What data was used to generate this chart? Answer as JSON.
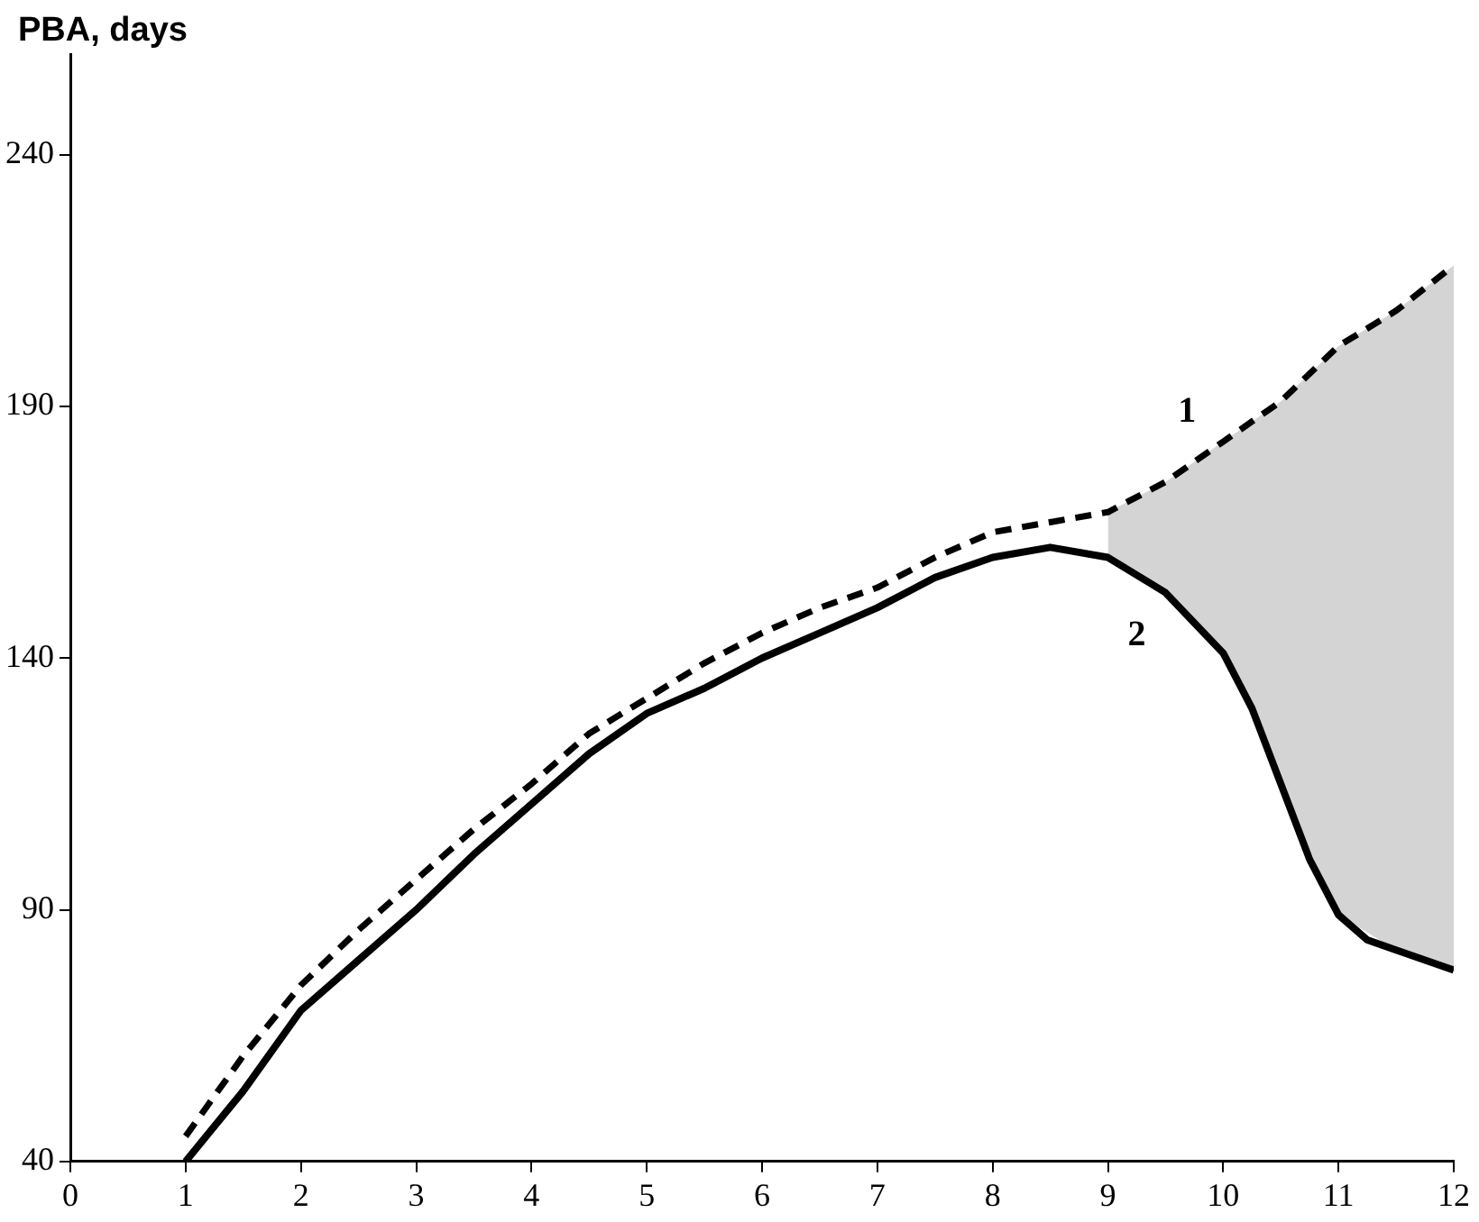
{
  "chart_data": {
    "type": "line",
    "ylabel": "PBA, days",
    "xlim": [
      0,
      12
    ],
    "xticks": [
      0,
      1,
      2,
      3,
      4,
      5,
      6,
      7,
      8,
      9,
      10,
      11,
      12
    ],
    "ylim": [
      40,
      260
    ],
    "yticks": [
      40,
      90,
      140,
      190,
      240
    ],
    "grid": false,
    "legend": false,
    "marker": "none",
    "series": [
      {
        "name": "1",
        "color": "#000000",
        "line_style": "dashed",
        "x": [
          1,
          1.5,
          2,
          2.5,
          3,
          3.5,
          4,
          4.5,
          5,
          5.5,
          6,
          6.5,
          7,
          7.5,
          8,
          8.5,
          9,
          9.5,
          10,
          10.5,
          11,
          11.5,
          12
        ],
        "values": [
          45,
          61,
          75,
          86,
          96,
          106,
          115,
          125,
          132,
          139,
          145,
          150,
          154,
          160,
          165,
          167,
          169,
          175,
          183,
          191,
          202,
          209,
          218
        ],
        "lower": [
          null,
          null,
          null,
          null,
          null,
          null,
          null,
          null,
          null,
          null,
          null,
          null,
          null,
          null,
          null,
          null,
          160,
          153,
          141,
          115,
          89,
          82,
          78
        ],
        "upper": [
          null,
          null,
          null,
          null,
          null,
          null,
          null,
          null,
          null,
          null,
          null,
          null,
          null,
          null,
          null,
          null,
          169,
          175,
          183,
          191,
          202,
          209,
          218
        ]
      },
      {
        "name": "2",
        "color": "#000000",
        "line_style": "solid",
        "x": [
          1,
          1.5,
          2,
          2.5,
          3,
          3.5,
          4,
          4.5,
          5,
          5.5,
          6,
          6.5,
          7,
          7.5,
          8,
          8.5,
          9,
          9.5,
          10,
          10.25,
          10.5,
          10.75,
          11,
          11.25,
          11.5,
          12
        ],
        "values": [
          40,
          54,
          70,
          80,
          90,
          101,
          111,
          121,
          129,
          134,
          140,
          145,
          150,
          156,
          160,
          162,
          160,
          153,
          141,
          130,
          115,
          100,
          89,
          84,
          82,
          78
        ]
      }
    ]
  }
}
